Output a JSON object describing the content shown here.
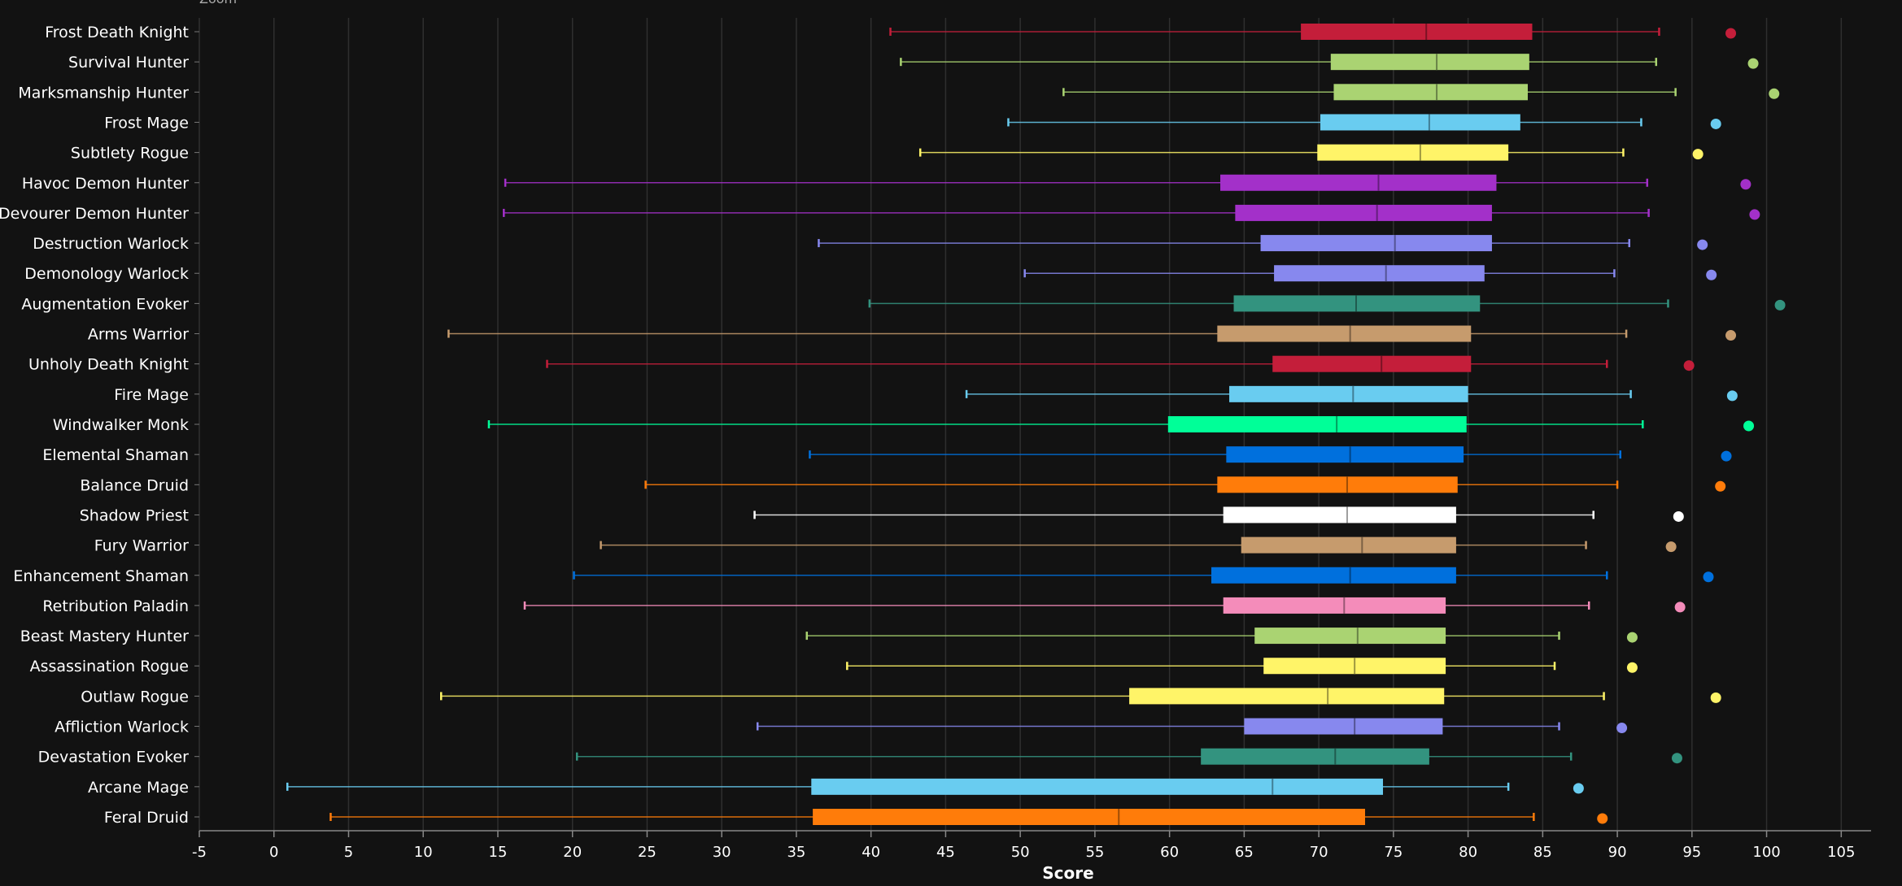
{
  "zoom_label": "Zoom",
  "chart_data": {
    "type": "boxplot",
    "xlabel": "Score",
    "xlim": [
      -5,
      107
    ],
    "xticks": [
      -5,
      0,
      5,
      10,
      15,
      20,
      25,
      30,
      35,
      40,
      45,
      50,
      55,
      60,
      65,
      70,
      75,
      80,
      85,
      90,
      95,
      100,
      105
    ],
    "grid": true,
    "series": [
      {
        "name": "Frost Death Knight",
        "color": "#C41E3A",
        "min": 41.3,
        "q1": 68.8,
        "median": 77.2,
        "q3": 84.3,
        "max": 92.8,
        "outlier": 97.6
      },
      {
        "name": "Survival Hunter",
        "color": "#AAD372",
        "min": 42.0,
        "q1": 70.8,
        "median": 77.9,
        "q3": 84.1,
        "max": 92.6,
        "outlier": 99.1
      },
      {
        "name": "Marksmanship Hunter",
        "color": "#AAD372",
        "min": 52.9,
        "q1": 71.0,
        "median": 77.9,
        "q3": 84.0,
        "max": 93.9,
        "outlier": 100.5
      },
      {
        "name": "Frost Mage",
        "color": "#69CCF0",
        "min": 49.2,
        "q1": 70.1,
        "median": 77.4,
        "q3": 83.5,
        "max": 91.6,
        "outlier": 96.6
      },
      {
        "name": "Subtlety Rogue",
        "color": "#FFF468",
        "min": 43.3,
        "q1": 69.9,
        "median": 76.8,
        "q3": 82.7,
        "max": 90.4,
        "outlier": 95.4
      },
      {
        "name": "Havoc Demon Hunter",
        "color": "#A330C9",
        "min": 15.5,
        "q1": 63.4,
        "median": 74.0,
        "q3": 81.9,
        "max": 92.0,
        "outlier": 98.6
      },
      {
        "name": "Devourer Demon Hunter",
        "color": "#A330C9",
        "min": 15.4,
        "q1": 64.4,
        "median": 73.9,
        "q3": 81.6,
        "max": 92.1,
        "outlier": 99.2
      },
      {
        "name": "Destruction Warlock",
        "color": "#8788EE",
        "min": 36.5,
        "q1": 66.1,
        "median": 75.1,
        "q3": 81.6,
        "max": 90.8,
        "outlier": 95.7
      },
      {
        "name": "Demonology Warlock",
        "color": "#8788EE",
        "min": 50.3,
        "q1": 67.0,
        "median": 74.5,
        "q3": 81.1,
        "max": 89.8,
        "outlier": 96.3
      },
      {
        "name": "Augmentation Evoker",
        "color": "#33937F",
        "min": 39.9,
        "q1": 64.3,
        "median": 72.5,
        "q3": 80.8,
        "max": 93.4,
        "outlier": 100.9
      },
      {
        "name": "Arms Warrior",
        "color": "#C69B6D",
        "min": 11.7,
        "q1": 63.2,
        "median": 72.1,
        "q3": 80.2,
        "max": 90.6,
        "outlier": 97.6
      },
      {
        "name": "Unholy Death Knight",
        "color": "#C41E3A",
        "min": 18.3,
        "q1": 66.9,
        "median": 74.2,
        "q3": 80.2,
        "max": 89.3,
        "outlier": 94.8
      },
      {
        "name": "Fire Mage",
        "color": "#69CCF0",
        "min": 46.4,
        "q1": 64.0,
        "median": 72.3,
        "q3": 80.0,
        "max": 90.9,
        "outlier": 97.7
      },
      {
        "name": "Windwalker Monk",
        "color": "#00FF98",
        "min": 14.4,
        "q1": 59.9,
        "median": 71.2,
        "q3": 79.9,
        "max": 91.7,
        "outlier": 98.8
      },
      {
        "name": "Elemental Shaman",
        "color": "#0070DD",
        "min": 35.9,
        "q1": 63.8,
        "median": 72.1,
        "q3": 79.7,
        "max": 90.2,
        "outlier": 97.3
      },
      {
        "name": "Balance Druid",
        "color": "#FF7C0A",
        "min": 24.9,
        "q1": 63.2,
        "median": 71.9,
        "q3": 79.3,
        "max": 90.0,
        "outlier": 96.9
      },
      {
        "name": "Shadow Priest",
        "color": "#FFFFFF",
        "min": 32.2,
        "q1": 63.6,
        "median": 71.9,
        "q3": 79.2,
        "max": 88.4,
        "outlier": 94.1
      },
      {
        "name": "Fury Warrior",
        "color": "#C69B6D",
        "min": 21.9,
        "q1": 64.8,
        "median": 72.9,
        "q3": 79.2,
        "max": 87.9,
        "outlier": 93.6
      },
      {
        "name": "Enhancement Shaman",
        "color": "#0070DD",
        "min": 20.1,
        "q1": 62.8,
        "median": 72.1,
        "q3": 79.2,
        "max": 89.3,
        "outlier": 96.1
      },
      {
        "name": "Retribution Paladin",
        "color": "#F48CBA",
        "min": 16.8,
        "q1": 63.6,
        "median": 71.7,
        "q3": 78.5,
        "max": 88.1,
        "outlier": 94.2
      },
      {
        "name": "Beast Mastery Hunter",
        "color": "#AAD372",
        "min": 35.7,
        "q1": 65.7,
        "median": 72.6,
        "q3": 78.5,
        "max": 86.1,
        "outlier": 91.0
      },
      {
        "name": "Assassination Rogue",
        "color": "#FFF468",
        "min": 38.4,
        "q1": 66.3,
        "median": 72.4,
        "q3": 78.5,
        "max": 85.8,
        "outlier": 91.0
      },
      {
        "name": "Outlaw Rogue",
        "color": "#FFF468",
        "min": 11.2,
        "q1": 57.3,
        "median": 70.6,
        "q3": 78.4,
        "max": 89.1,
        "outlier": 96.6
      },
      {
        "name": "Affliction Warlock",
        "color": "#8788EE",
        "min": 32.4,
        "q1": 65.0,
        "median": 72.4,
        "q3": 78.3,
        "max": 86.1,
        "outlier": 90.3
      },
      {
        "name": "Devastation Evoker",
        "color": "#33937F",
        "min": 20.3,
        "q1": 62.1,
        "median": 71.1,
        "q3": 77.4,
        "max": 86.9,
        "outlier": 94.0
      },
      {
        "name": "Arcane Mage",
        "color": "#69CCF0",
        "min": 0.9,
        "q1": 36.0,
        "median": 66.9,
        "q3": 74.3,
        "max": 82.7,
        "outlier": 87.4
      },
      {
        "name": "Feral Druid",
        "color": "#FF7C0A",
        "min": 3.8,
        "q1": 36.1,
        "median": 56.6,
        "q3": 73.1,
        "max": 84.4,
        "outlier": 89.0
      }
    ]
  }
}
